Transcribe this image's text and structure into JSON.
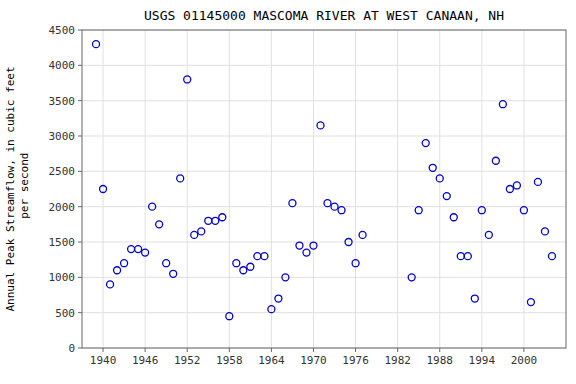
{
  "chart_data": {
    "type": "scatter",
    "title": "USGS 01145000 MASCOMA RIVER AT WEST CANAAN, NH",
    "ylabel": "Annual Peak Streamflow, in cubic feet\n per second",
    "x": [
      1939,
      1940,
      1941,
      1942,
      1943,
      1944,
      1945,
      1946,
      1947,
      1948,
      1949,
      1950,
      1951,
      1952,
      1953,
      1954,
      1955,
      1956,
      1957,
      1958,
      1959,
      1960,
      1961,
      1962,
      1963,
      1964,
      1965,
      1966,
      1967,
      1968,
      1969,
      1970,
      1971,
      1972,
      1973,
      1974,
      1975,
      1976,
      1977,
      1984,
      1985,
      1986,
      1987,
      1988,
      1989,
      1990,
      1991,
      1992,
      1993,
      1994,
      1995,
      1996,
      1997,
      1998,
      1999,
      2000,
      2001,
      2002,
      2003,
      2004
    ],
    "values": [
      4300,
      2250,
      900,
      1100,
      1200,
      1400,
      1400,
      1350,
      2000,
      1750,
      1200,
      1050,
      2400,
      3800,
      1600,
      1650,
      1800,
      1800,
      1850,
      450,
      1200,
      1100,
      1150,
      1300,
      1300,
      550,
      700,
      1000,
      2050,
      1450,
      1350,
      1450,
      3150,
      2050,
      2000,
      1950,
      1500,
      1200,
      1600,
      1000,
      1950,
      2900,
      2550,
      2400,
      2150,
      1850,
      1300,
      1300,
      700,
      1950,
      1600,
      2650,
      3450,
      2250,
      2300,
      1950,
      650,
      2350,
      1650,
      1300
    ],
    "color": "#0000cc",
    "marker": "open-circle",
    "xlim": [
      1937,
      2006
    ],
    "ylim": [
      0,
      4500
    ],
    "xticks": [
      1940,
      1946,
      1952,
      1958,
      1964,
      1970,
      1976,
      1982,
      1988,
      1994,
      2000
    ],
    "yticks": [
      0,
      500,
      1000,
      1500,
      2000,
      2500,
      3000,
      3500,
      4000,
      4500
    ],
    "grid": true
  }
}
